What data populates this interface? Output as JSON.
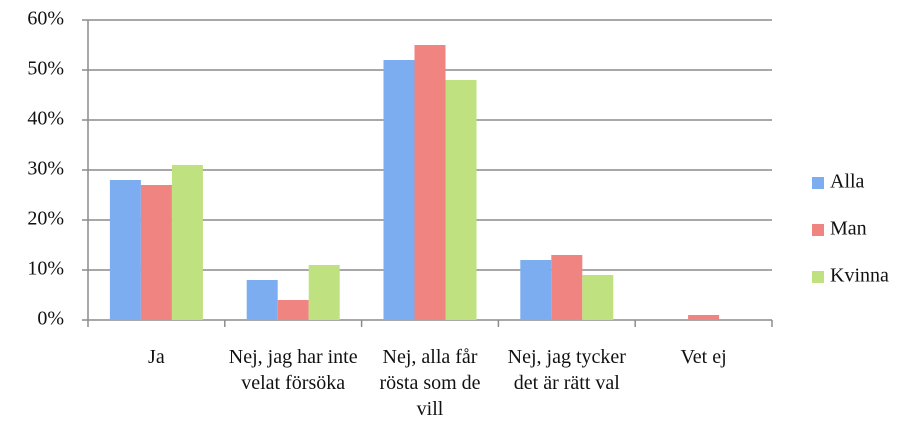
{
  "chart_data": {
    "type": "bar",
    "categories": [
      "Ja",
      "Nej, jag har inte velat försöka",
      "Nej, alla får rösta som de vill",
      "Nej, jag tycker det är rätt val",
      "Vet ej"
    ],
    "series": [
      {
        "name": "Alla",
        "color": "#7badf0",
        "values": [
          28,
          8,
          52,
          12,
          0
        ]
      },
      {
        "name": "Man",
        "color": "#ef8480",
        "values": [
          27,
          4,
          55,
          13,
          1
        ]
      },
      {
        "name": "Kvinna",
        "color": "#bfe17f",
        "values": [
          31,
          11,
          48,
          9,
          0
        ]
      }
    ],
    "ylim": [
      0,
      60
    ],
    "yticks": [
      {
        "value": 0,
        "label": "0%"
      },
      {
        "value": 10,
        "label": "10%"
      },
      {
        "value": 20,
        "label": "20%"
      },
      {
        "value": 30,
        "label": "30%"
      },
      {
        "value": 40,
        "label": "40%"
      },
      {
        "value": 50,
        "label": "50%"
      },
      {
        "value": 60,
        "label": "60%"
      }
    ],
    "grid": true,
    "legend": "right"
  }
}
